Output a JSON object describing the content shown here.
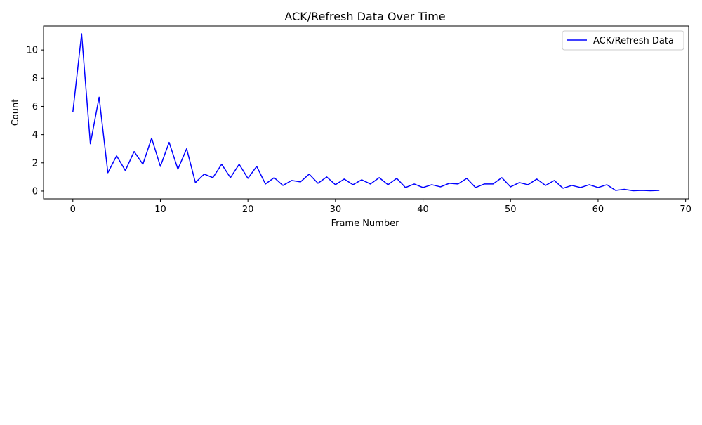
{
  "chart_data": {
    "type": "line",
    "title": "ACK/Refresh Data Over Time",
    "xlabel": "Frame Number",
    "ylabel": "Count",
    "xlim": [
      -3.35,
      70.35
    ],
    "ylim": [
      -0.55,
      11.7
    ],
    "xticks": [
      0,
      10,
      20,
      30,
      40,
      50,
      60,
      70
    ],
    "yticks": [
      0,
      2,
      4,
      6,
      8,
      10
    ],
    "grid": false,
    "legend_position": "top-right",
    "series": [
      {
        "name": "ACK/Refresh Data",
        "color": "#0000ff",
        "x": [
          0,
          1,
          2,
          3,
          4,
          5,
          6,
          7,
          8,
          9,
          10,
          11,
          12,
          13,
          14,
          15,
          16,
          17,
          18,
          19,
          20,
          21,
          22,
          23,
          24,
          25,
          26,
          27,
          28,
          29,
          30,
          31,
          32,
          33,
          34,
          35,
          36,
          37,
          38,
          39,
          40,
          41,
          42,
          43,
          44,
          45,
          46,
          47,
          48,
          49,
          50,
          51,
          52,
          53,
          54,
          55,
          56,
          57,
          58,
          59,
          60,
          61,
          62,
          63,
          64,
          65,
          66,
          67
        ],
        "y": [
          5.6,
          11.15,
          3.35,
          6.65,
          1.3,
          2.5,
          1.45,
          2.8,
          1.9,
          3.75,
          1.75,
          3.45,
          1.55,
          3.0,
          0.6,
          1.2,
          0.95,
          1.9,
          0.95,
          1.9,
          0.9,
          1.75,
          0.5,
          0.95,
          0.4,
          0.75,
          0.65,
          1.2,
          0.55,
          1.0,
          0.45,
          0.85,
          0.45,
          0.8,
          0.5,
          0.95,
          0.45,
          0.9,
          0.25,
          0.5,
          0.25,
          0.45,
          0.3,
          0.55,
          0.5,
          0.9,
          0.25,
          0.5,
          0.5,
          0.95,
          0.3,
          0.6,
          0.45,
          0.85,
          0.4,
          0.75,
          0.2,
          0.4,
          0.25,
          0.45,
          0.25,
          0.45,
          0.05,
          0.12,
          0.02,
          0.05,
          0.02,
          0.05
        ]
      }
    ]
  }
}
